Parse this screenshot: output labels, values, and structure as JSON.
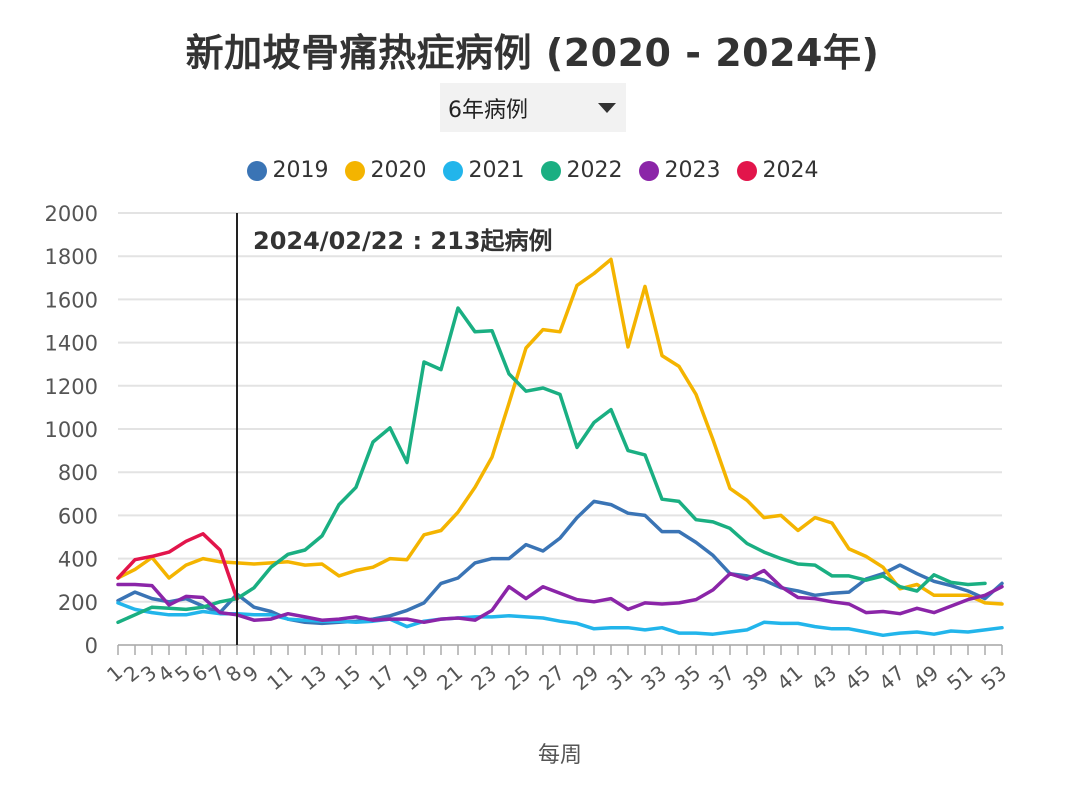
{
  "title": "新加坡骨痛热症病例 (2020 - 2024年)",
  "dropdown": {
    "selected": "6年病例"
  },
  "annotation": "2024/02/22 : 213起病例",
  "chart_data": {
    "type": "line",
    "xlabel": "每周",
    "ylabel": "",
    "ylim": [
      0,
      2000
    ],
    "yticks": [
      0,
      200,
      400,
      600,
      800,
      1000,
      1200,
      1400,
      1600,
      1800,
      2000
    ],
    "xticks": [
      "1",
      "2",
      "3",
      "4",
      "5",
      "6",
      "7",
      "8",
      "9",
      "11",
      "13",
      "15",
      "17",
      "19",
      "21",
      "23",
      "25",
      "27",
      "29",
      "31",
      "33",
      "35",
      "37",
      "39",
      "41",
      "43",
      "45",
      "47",
      "49",
      "51",
      "53"
    ],
    "grid": true,
    "legend_position": "top",
    "reference_line_week": 8,
    "series": [
      {
        "name": "2019",
        "color": "#3a74b5",
        "values": [
          205,
          245,
          215,
          200,
          215,
          180,
          150,
          235,
          175,
          155,
          120,
          105,
          100,
          105,
          110,
          120,
          135,
          160,
          195,
          285,
          310,
          380,
          400,
          400,
          465,
          435,
          495,
          590,
          665,
          650,
          610,
          600,
          525,
          525,
          475,
          415,
          330,
          320,
          300,
          265,
          250,
          230,
          240,
          245,
          305,
          330,
          370,
          330,
          295,
          275,
          250,
          215,
          285
        ]
      },
      {
        "name": "2020",
        "color": "#f4b400",
        "values": [
          310,
          350,
          405,
          310,
          370,
          400,
          385,
          380,
          375,
          380,
          385,
          370,
          375,
          320,
          345,
          360,
          400,
          395,
          510,
          530,
          615,
          730,
          870,
          1120,
          1375,
          1460,
          1450,
          1665,
          1720,
          1785,
          1380,
          1660,
          1340,
          1290,
          1160,
          950,
          725,
          670,
          590,
          600,
          530,
          590,
          565,
          445,
          410,
          360,
          260,
          280,
          230,
          230,
          230,
          195,
          190
        ]
      },
      {
        "name": "2021",
        "color": "#22b5eb",
        "values": [
          195,
          165,
          150,
          140,
          140,
          155,
          145,
          145,
          140,
          140,
          120,
          115,
          110,
          110,
          105,
          110,
          120,
          85,
          110,
          120,
          125,
          130,
          130,
          135,
          130,
          125,
          110,
          100,
          75,
          80,
          80,
          70,
          80,
          55,
          55,
          50,
          60,
          70,
          105,
          100,
          100,
          85,
          75,
          75,
          60,
          45,
          55,
          60,
          50,
          65,
          60,
          70,
          80
        ]
      },
      {
        "name": "2022",
        "color": "#1aaf82",
        "values": [
          105,
          140,
          175,
          170,
          165,
          175,
          200,
          215,
          265,
          360,
          420,
          440,
          505,
          650,
          730,
          940,
          1005,
          845,
          1310,
          1275,
          1560,
          1450,
          1455,
          1255,
          1175,
          1190,
          1160,
          915,
          1030,
          1090,
          900,
          880,
          675,
          665,
          580,
          570,
          540,
          470,
          430,
          400,
          375,
          370,
          320,
          320,
          300,
          320,
          270,
          250,
          325,
          290,
          280,
          285,
          null
        ]
      },
      {
        "name": "2023",
        "color": "#8b25a8",
        "values": [
          280,
          280,
          275,
          185,
          225,
          220,
          150,
          140,
          115,
          120,
          145,
          130,
          115,
          120,
          130,
          115,
          120,
          120,
          105,
          120,
          125,
          115,
          160,
          270,
          215,
          270,
          240,
          210,
          200,
          215,
          165,
          195,
          190,
          195,
          210,
          255,
          330,
          305,
          345,
          270,
          220,
          215,
          200,
          190,
          150,
          155,
          145,
          170,
          150,
          180,
          210,
          230,
          270
        ]
      },
      {
        "name": "2024",
        "color": "#e2154b",
        "values": [
          310,
          395,
          410,
          430,
          480,
          515,
          440,
          213
        ]
      }
    ]
  }
}
